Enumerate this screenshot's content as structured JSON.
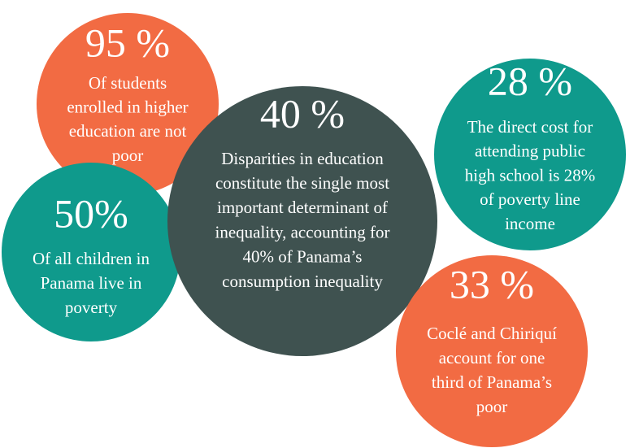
{
  "circles": [
    {
      "stat": "95 %",
      "color": "#f26b43",
      "lines": [
        "Of students",
        "enrolled in higher",
        "education are not",
        "poor"
      ]
    },
    {
      "stat": "50%",
      "color": "#0f9a8c",
      "lines": [
        "Of all children in",
        "Panama live in",
        "poverty"
      ]
    },
    {
      "stat": "40 %",
      "color": "#3f5250",
      "lines": [
        "Disparities in education",
        "constitute the single most",
        "important determinant of",
        "inequality, accounting for",
        "40% of Panama’s",
        "consumption inequality"
      ]
    },
    {
      "stat": "28 %",
      "color": "#0f9a8c",
      "lines": [
        "The direct cost for",
        "attending public",
        "high school is 28%",
        "of poverty line",
        "income"
      ]
    },
    {
      "stat": "33 %",
      "color": "#f26b43",
      "lines": [
        "Coclé and Chiriquí",
        "account for one",
        "third of Panama’s",
        "poor"
      ]
    }
  ]
}
